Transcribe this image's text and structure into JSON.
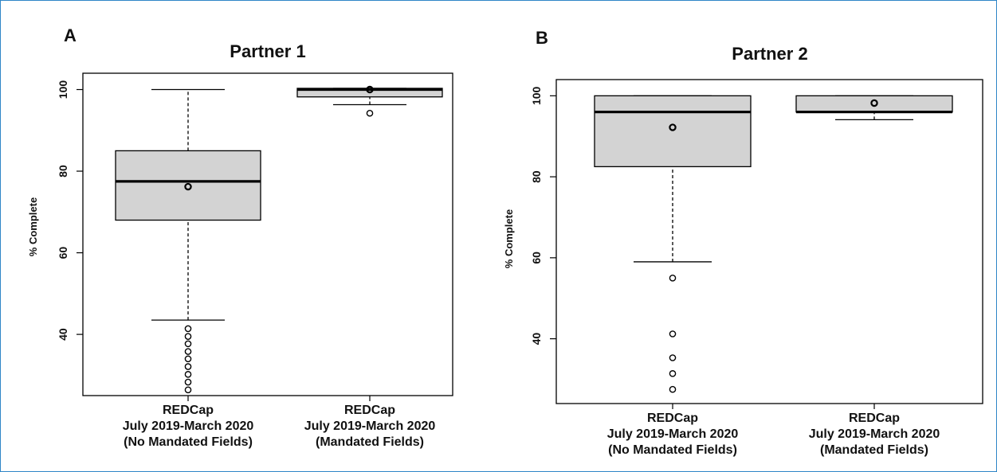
{
  "colors": {
    "box_fill": "#d3d3d3",
    "stroke": "#000000",
    "frame": "#2f86c7"
  },
  "chart_data": [
    {
      "type": "boxplot",
      "panel_label": "A",
      "title": "Partner 1",
      "ylabel": "% Complete",
      "ylim": [
        25,
        104
      ],
      "yticks": [
        "40",
        "60",
        "80",
        "100"
      ],
      "categories": [
        [
          "REDCap",
          "July 2019-March 2020",
          "(No Mandated Fields)"
        ],
        [
          "REDCap",
          "July 2019-March 2020",
          "(Mandated Fields)"
        ]
      ],
      "boxes": [
        {
          "whisker_low": 43.5,
          "q1": 68,
          "median": 77.5,
          "q3": 85,
          "whisker_high": 100,
          "mean": 76.2,
          "outliers": [
            41.4,
            39.5,
            37.7,
            35.8,
            34,
            32.1,
            30.2,
            28.3,
            26.4
          ]
        },
        {
          "whisker_low": 96.3,
          "q1": 98.2,
          "median": 100,
          "q3": 100.3,
          "whisker_high": 100.3,
          "mean": 100,
          "outliers": [
            94.2
          ]
        }
      ]
    },
    {
      "type": "boxplot",
      "panel_label": "B",
      "title": "Partner 2",
      "ylabel": "% Complete",
      "ylim": [
        24,
        104
      ],
      "yticks": [
        "40",
        "60",
        "80",
        "100"
      ],
      "categories": [
        [
          "REDCap",
          "July 2019-March 2020",
          "(No Mandated Fields)"
        ],
        [
          "REDCap",
          "July 2019-March 2020",
          "(Mandated Fields)"
        ]
      ],
      "boxes": [
        {
          "whisker_low": 59,
          "q1": 82.5,
          "median": 96,
          "q3": 100,
          "whisker_high": 100,
          "mean": 92.2,
          "outliers": [
            55,
            41.2,
            35.3,
            31.4,
            27.5
          ]
        },
        {
          "whisker_low": 94.1,
          "q1": 96,
          "median": 96,
          "q3": 100,
          "whisker_high": 100,
          "mean": 98.2,
          "outliers": []
        }
      ]
    }
  ]
}
